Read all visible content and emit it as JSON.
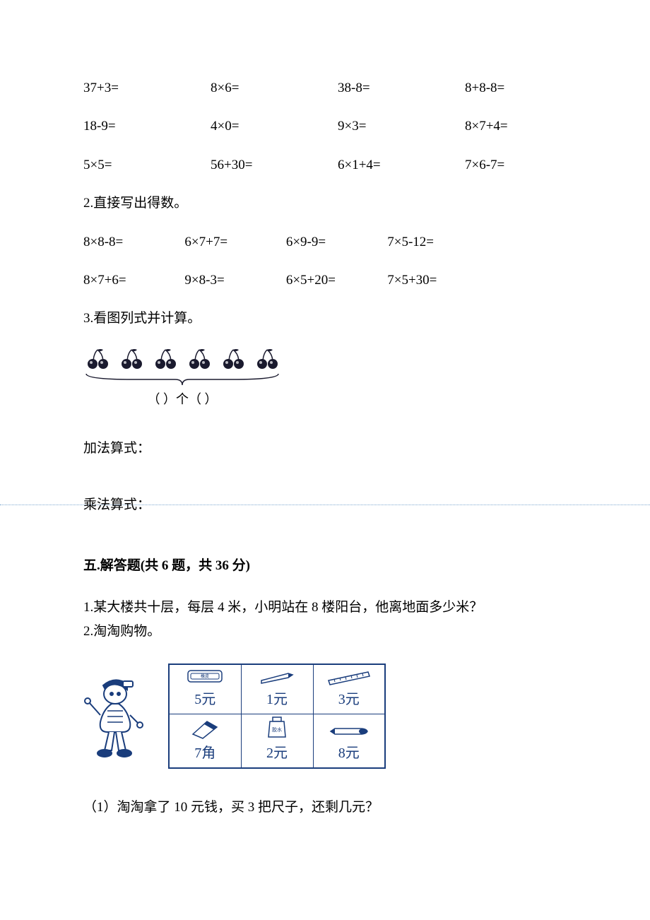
{
  "grid1": {
    "r1c1": "37+3=",
    "r1c2": "8×6=",
    "r1c3": "38-8=",
    "r1c4": "8+8-8=",
    "r2c1": "18-9=",
    "r2c2": "4×0=",
    "r2c3": "9×3=",
    "r2c4": "8×7+4=",
    "r3c1": "5×5=",
    "r3c2": "56+30=",
    "r3c3": "6×1+4=",
    "r3c4": "7×6-7="
  },
  "q2_label": "2.直接写出得数。",
  "grid2": {
    "r1c1": "8×8-8=",
    "r1c2": "6×7+7=",
    "r1c3": "6×9-9=",
    "r1c4": "7×5-12=",
    "r2c1": "8×7+6=",
    "r2c2": "9×8-3=",
    "r2c3": "6×5+20=",
    "r2c4": "7×5+30="
  },
  "q3_label": "3.看图列式并计算。",
  "cherry": {
    "group_count": 6,
    "bracket_text": "（   ）个（    ）"
  },
  "add_label": "加法算式：",
  "mul_label": "乘法算式：",
  "section5": "五.解答题(共 6 题，共 36 分)",
  "s5q1": "1.某大楼共十层，每层 4 米，小明站在 8 楼阳台，他离地面多少米？",
  "s5q2": "2.淘淘购物。",
  "table": {
    "r1c1": "5元",
    "r1c2": "1元",
    "r1c3": "3元",
    "r2c1": "7角",
    "r2c2": "2元",
    "r2c3": "8元"
  },
  "s5q2_1": "（1）淘淘拿了 10 元钱，买 3 把尺子，还剩几元？",
  "colors": {
    "text": "#000000",
    "dotted": "#7fa8d0",
    "ink": "#1a3d7c",
    "cherry_dark": "#1a1a2e"
  }
}
